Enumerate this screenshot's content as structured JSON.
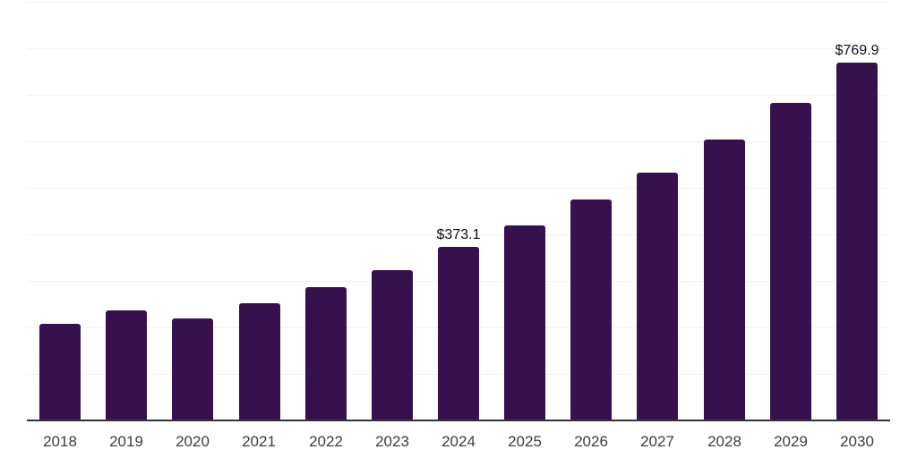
{
  "chart_data": {
    "type": "bar",
    "title": "",
    "xlabel": "",
    "ylabel": "",
    "categories": [
      "2018",
      "2019",
      "2020",
      "2021",
      "2022",
      "2023",
      "2024",
      "2025",
      "2026",
      "2027",
      "2028",
      "2029",
      "2030"
    ],
    "series": [
      {
        "name": "value",
        "values": [
          208,
          236.5,
          219,
          252,
          286.5,
          323,
          373.1,
          419.5,
          475,
          533,
          604,
          683,
          769.9
        ]
      }
    ],
    "point_labels": [
      "",
      "",
      "",
      "",
      "",
      "",
      "$373.1",
      "",
      "",
      "",
      "",
      "",
      "$769.9"
    ],
    "ylim": [
      0,
      900
    ],
    "grid_step": 100,
    "grid": true,
    "legend_position": "none",
    "y_tick_labels_visible": false,
    "colors": {
      "bar": "#36114E",
      "grid": "#f2f2f2",
      "axis_line": "#333333",
      "tick_label": "#3d3d3d",
      "value_label": "#111111",
      "background": "#ffffff"
    }
  }
}
